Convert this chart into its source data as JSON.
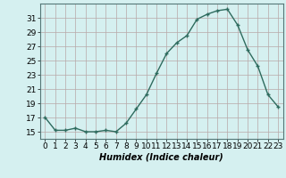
{
  "x": [
    0,
    1,
    2,
    3,
    4,
    5,
    6,
    7,
    8,
    9,
    10,
    11,
    12,
    13,
    14,
    15,
    16,
    17,
    18,
    19,
    20,
    21,
    22,
    23
  ],
  "y": [
    17,
    15.2,
    15.2,
    15.5,
    15.0,
    15.0,
    15.2,
    15.0,
    16.2,
    18.2,
    20.2,
    23.2,
    26.0,
    27.5,
    28.5,
    30.8,
    31.5,
    32.0,
    32.2,
    30.0,
    26.5,
    24.2,
    20.2,
    18.5
  ],
  "line_color": "#2e6b5e",
  "marker": "+",
  "marker_size": 3,
  "marker_lw": 1.0,
  "bg_color": "#d5f0f0",
  "grid_color": "#b8a8a8",
  "grid_lw": 0.5,
  "xlabel": "Humidex (Indice chaleur)",
  "ylim": [
    14,
    33
  ],
  "yticks": [
    15,
    17,
    19,
    21,
    23,
    25,
    27,
    29,
    31
  ],
  "xlim": [
    -0.5,
    23.5
  ],
  "xticks": [
    0,
    1,
    2,
    3,
    4,
    5,
    6,
    7,
    8,
    9,
    10,
    11,
    12,
    13,
    14,
    15,
    16,
    17,
    18,
    19,
    20,
    21,
    22,
    23
  ],
  "xlabel_fontsize": 7,
  "tick_fontsize": 6.5,
  "line_lw": 1.0
}
